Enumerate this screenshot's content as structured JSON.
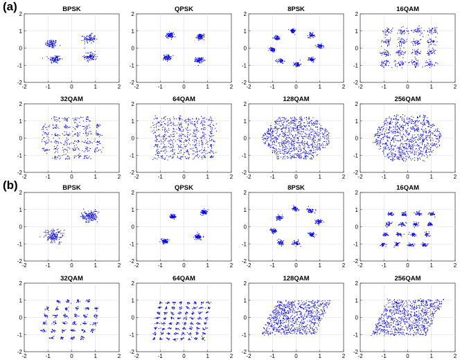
{
  "figure": {
    "panel_labels": [
      "(a)",
      "(b)"
    ],
    "marker_color": "#0000ff"
  },
  "chart_data": [
    {
      "type": "scatter",
      "panel": "(a)",
      "title": "BPSK",
      "xlim": [
        -2,
        2
      ],
      "ylim": [
        -2,
        2
      ],
      "xticks": [
        -2,
        -1,
        0,
        1,
        2
      ],
      "yticks": [
        -2,
        -1,
        0,
        1,
        2
      ],
      "grid": true,
      "clusters": [
        {
          "x": -0.85,
          "y": 0.25,
          "spread": 0.13
        },
        {
          "x": -0.7,
          "y": -0.65,
          "spread": 0.13
        },
        {
          "x": 0.75,
          "y": 0.55,
          "spread": 0.13
        },
        {
          "x": 0.8,
          "y": -0.5,
          "spread": 0.13
        }
      ]
    },
    {
      "type": "scatter",
      "panel": "(a)",
      "title": "QPSK",
      "xlim": [
        -2,
        2
      ],
      "ylim": [
        -2,
        2
      ],
      "xticks": [
        -2,
        -1,
        0,
        1,
        2
      ],
      "yticks": [
        -2,
        -1,
        0,
        1,
        2
      ],
      "grid": true,
      "clusters": [
        {
          "x": -0.6,
          "y": 0.75,
          "spread": 0.08
        },
        {
          "x": 0.7,
          "y": 0.65,
          "spread": 0.08
        },
        {
          "x": -0.7,
          "y": -0.55,
          "spread": 0.08
        },
        {
          "x": 0.65,
          "y": -0.7,
          "spread": 0.08
        }
      ]
    },
    {
      "type": "scatter",
      "panel": "(a)",
      "title": "8PSK",
      "xlim": [
        -2,
        2
      ],
      "ylim": [
        -2,
        2
      ],
      "xticks": [
        -2,
        -1,
        0,
        1,
        2
      ],
      "yticks": [
        -2,
        -1,
        0,
        1,
        2
      ],
      "grid": true,
      "clusters": [
        {
          "x": -0.15,
          "y": 1.0,
          "spread": 0.07
        },
        {
          "x": 0.65,
          "y": 0.75,
          "spread": 0.07
        },
        {
          "x": 1.0,
          "y": 0.1,
          "spread": 0.07
        },
        {
          "x": 0.65,
          "y": -0.65,
          "spread": 0.07
        },
        {
          "x": 0.05,
          "y": -0.95,
          "spread": 0.07
        },
        {
          "x": -0.65,
          "y": -0.75,
          "spread": 0.07
        },
        {
          "x": -1.0,
          "y": -0.1,
          "spread": 0.07
        },
        {
          "x": -0.8,
          "y": 0.6,
          "spread": 0.07
        }
      ]
    },
    {
      "type": "scatter",
      "panel": "(a)",
      "title": "16QAM",
      "xlim": [
        -2,
        2
      ],
      "ylim": [
        -2,
        2
      ],
      "xticks": [
        -2,
        -1,
        0,
        1,
        2
      ],
      "yticks": [
        -2,
        -1,
        0,
        1,
        2
      ],
      "grid": true,
      "grid_constellation": {
        "nx": 4,
        "ny": 4,
        "xmin": -0.9,
        "xmax": 1.0,
        "ymin": -0.9,
        "ymax": 1.0,
        "skew": 0.05,
        "spread": 0.11
      }
    },
    {
      "type": "scatter",
      "panel": "(a)",
      "title": "32QAM",
      "xlim": [
        -2,
        2
      ],
      "ylim": [
        -2,
        2
      ],
      "xticks": [
        -2,
        -1,
        0,
        1,
        2
      ],
      "yticks": [
        -2,
        -1,
        0,
        1,
        2
      ],
      "grid": true,
      "grid_constellation": {
        "nx": 6,
        "ny": 6,
        "xmin": -1.1,
        "xmax": 1.1,
        "ymin": -1.1,
        "ymax": 1.1,
        "skew": 0.0,
        "spread": 0.09,
        "drop_corners": true
      }
    },
    {
      "type": "scatter",
      "panel": "(a)",
      "title": "64QAM",
      "xlim": [
        -2,
        2
      ],
      "ylim": [
        -2,
        2
      ],
      "xticks": [
        -2,
        -1,
        0,
        1,
        2
      ],
      "yticks": [
        -2,
        -1,
        0,
        1,
        2
      ],
      "grid": true,
      "grid_constellation": {
        "nx": 8,
        "ny": 8,
        "xmin": -1.15,
        "xmax": 1.15,
        "ymin": -1.1,
        "ymax": 1.1,
        "skew": 0.0,
        "spread": 0.09
      }
    },
    {
      "type": "scatter",
      "panel": "(a)",
      "title": "128QAM",
      "xlim": [
        -2,
        2
      ],
      "ylim": [
        -2,
        2
      ],
      "xticks": [
        -2,
        -1,
        0,
        1,
        2
      ],
      "yticks": [
        -2,
        -1,
        0,
        1,
        2
      ],
      "grid": true,
      "cloud": {
        "shape": "diamond",
        "rx": 1.55,
        "ry": 1.45,
        "count": 900,
        "skew": 0.0
      }
    },
    {
      "type": "scatter",
      "panel": "(a)",
      "title": "256QAM",
      "xlim": [
        -2,
        2
      ],
      "ylim": [
        -2,
        2
      ],
      "xticks": [
        -2,
        -1,
        0,
        1,
        2
      ],
      "yticks": [
        -2,
        -1,
        0,
        1,
        2
      ],
      "grid": true,
      "cloud": {
        "shape": "diamond",
        "rx": 1.55,
        "ry": 1.55,
        "count": 900,
        "skew": 0.0
      }
    },
    {
      "type": "scatter",
      "panel": "(b)",
      "title": "BPSK",
      "xlim": [
        -2,
        2
      ],
      "ylim": [
        -2,
        2
      ],
      "xticks": [
        -2,
        -1,
        0,
        1,
        2
      ],
      "yticks": [
        -2,
        -1,
        0,
        1,
        2
      ],
      "grid": true,
      "clusters": [
        {
          "x": -0.75,
          "y": -0.55,
          "spread": 0.2
        },
        {
          "x": 0.75,
          "y": 0.6,
          "spread": 0.17
        }
      ]
    },
    {
      "type": "scatter",
      "panel": "(b)",
      "title": "QPSK",
      "xlim": [
        -2,
        2
      ],
      "ylim": [
        -2,
        2
      ],
      "xticks": [
        -2,
        -1,
        0,
        1,
        2
      ],
      "yticks": [
        -2,
        -1,
        0,
        1,
        2
      ],
      "grid": true,
      "clusters": [
        {
          "x": -0.45,
          "y": 0.6,
          "spread": 0.07
        },
        {
          "x": 0.85,
          "y": 0.85,
          "spread": 0.07
        },
        {
          "x": -0.8,
          "y": -0.85,
          "spread": 0.07
        },
        {
          "x": 0.6,
          "y": -0.6,
          "spread": 0.07
        }
      ]
    },
    {
      "type": "scatter",
      "panel": "(b)",
      "title": "8PSK",
      "xlim": [
        -2,
        2
      ],
      "ylim": [
        -2,
        2
      ],
      "xticks": [
        -2,
        -1,
        0,
        1,
        2
      ],
      "yticks": [
        -2,
        -1,
        0,
        1,
        2
      ],
      "grid": true,
      "clusters": [
        {
          "x": -0.05,
          "y": 1.05,
          "spread": 0.07
        },
        {
          "x": 0.6,
          "y": 0.95,
          "spread": 0.07
        },
        {
          "x": 0.95,
          "y": 0.3,
          "spread": 0.07
        },
        {
          "x": 0.65,
          "y": -0.45,
          "spread": 0.07
        },
        {
          "x": 0.0,
          "y": -0.95,
          "spread": 0.07
        },
        {
          "x": -0.65,
          "y": -0.95,
          "spread": 0.07
        },
        {
          "x": -0.95,
          "y": -0.25,
          "spread": 0.07
        },
        {
          "x": -0.7,
          "y": 0.5,
          "spread": 0.07
        }
      ]
    },
    {
      "type": "scatter",
      "panel": "(b)",
      "title": "16QAM",
      "xlim": [
        -2,
        2
      ],
      "ylim": [
        -2,
        2
      ],
      "xticks": [
        -2,
        -1,
        0,
        1,
        2
      ],
      "yticks": [
        -2,
        -1,
        0,
        1,
        2
      ],
      "grid": true,
      "grid_constellation": {
        "nx": 4,
        "ny": 4,
        "xmin": -0.85,
        "xmax": 0.9,
        "ymin": -1.05,
        "ymax": 0.75,
        "skew": 0.18,
        "spread": 0.06
      }
    },
    {
      "type": "scatter",
      "panel": "(b)",
      "title": "32QAM",
      "xlim": [
        -2,
        2
      ],
      "ylim": [
        -2,
        2
      ],
      "xticks": [
        -2,
        -1,
        0,
        1,
        2
      ],
      "yticks": [
        -2,
        -1,
        0,
        1,
        2
      ],
      "grid": true,
      "grid_constellation": {
        "nx": 6,
        "ny": 6,
        "xmin": -1.1,
        "xmax": 1.0,
        "ymin": -1.2,
        "ymax": 0.95,
        "skew": 0.12,
        "spread": 0.05,
        "drop_corners": true
      }
    },
    {
      "type": "scatter",
      "panel": "(b)",
      "title": "64QAM",
      "xlim": [
        -2,
        2
      ],
      "ylim": [
        -2,
        2
      ],
      "xticks": [
        -2,
        -1,
        0,
        1,
        2
      ],
      "yticks": [
        -2,
        -1,
        0,
        1,
        2
      ],
      "grid": true,
      "grid_constellation": {
        "nx": 8,
        "ny": 8,
        "xmin": -1.1,
        "xmax": 0.95,
        "ymin": -1.25,
        "ymax": 0.85,
        "skew": 0.12,
        "spread": 0.04
      }
    },
    {
      "type": "scatter",
      "panel": "(b)",
      "title": "128QAM",
      "xlim": [
        -2,
        2
      ],
      "ylim": [
        -2,
        2
      ],
      "xticks": [
        -2,
        -1,
        0,
        1,
        2
      ],
      "yticks": [
        -2,
        -1,
        0,
        1,
        2
      ],
      "grid": true,
      "cloud": {
        "shape": "parallelogram",
        "rx": 1.4,
        "ry": 1.35,
        "count": 850,
        "skew": 0.35
      }
    },
    {
      "type": "scatter",
      "panel": "(b)",
      "title": "256QAM",
      "xlim": [
        -2,
        2
      ],
      "ylim": [
        -2,
        2
      ],
      "xticks": [
        -2,
        -1,
        0,
        1,
        2
      ],
      "yticks": [
        -2,
        -1,
        0,
        1,
        2
      ],
      "grid": true,
      "cloud": {
        "shape": "parallelogram",
        "rx": 1.45,
        "ry": 1.45,
        "count": 850,
        "skew": 0.35
      }
    }
  ]
}
